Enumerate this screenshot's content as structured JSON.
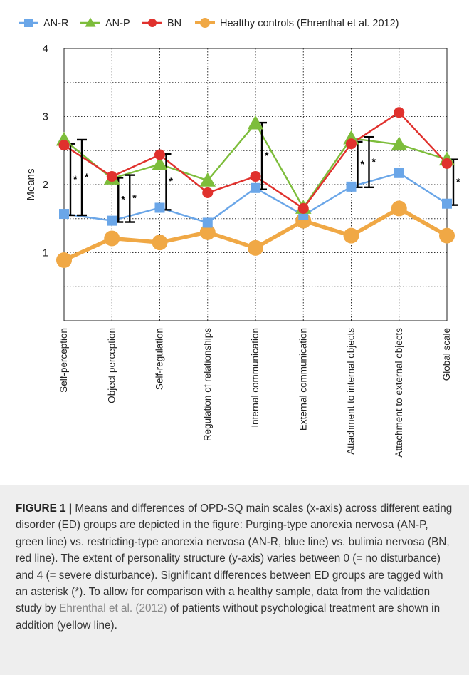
{
  "chart_data": {
    "type": "line",
    "ylabel": "Means",
    "xlabel": "",
    "ylim": [
      0,
      4
    ],
    "yticks": [
      1,
      2,
      3,
      4
    ],
    "grid": "dotted horizontal and vertical",
    "legend_position": "top",
    "categories": [
      "Self-perception",
      "Object perception",
      "Self-regulation",
      "Regulation of relationships",
      "Internal communication",
      "External communication",
      "Attachment to internal objects",
      "Attachment to external objects",
      "Global scale"
    ],
    "series": [
      {
        "name": "AN-R",
        "color": "#6aa6e8",
        "marker": "square",
        "values": [
          1.57,
          1.47,
          1.66,
          1.44,
          1.95,
          1.55,
          1.97,
          2.17,
          1.72
        ]
      },
      {
        "name": "AN-P",
        "color": "#7dbd3b",
        "marker": "triangle",
        "values": [
          2.66,
          2.09,
          2.3,
          2.06,
          2.9,
          1.66,
          2.68,
          2.59,
          2.37
        ]
      },
      {
        "name": "BN",
        "color": "#e0312d",
        "marker": "circle",
        "values": [
          2.58,
          2.12,
          2.44,
          1.88,
          2.12,
          1.65,
          2.6,
          3.06,
          2.31
        ]
      },
      {
        "name": "Healthy controls (Ehrenthal et al. 2012)",
        "color": "#f0a845",
        "marker": "circle",
        "values": [
          0.89,
          1.21,
          1.15,
          1.3,
          1.07,
          1.47,
          1.25,
          1.65,
          1.25
        ]
      }
    ],
    "significance_brackets": [
      {
        "category_index": 0,
        "offset": 0,
        "low": 1.55,
        "high": 2.6,
        "label": "*"
      },
      {
        "category_index": 0,
        "offset": 1,
        "low": 1.55,
        "high": 2.66,
        "label": "*"
      },
      {
        "category_index": 1,
        "offset": 0,
        "low": 1.45,
        "high": 2.1,
        "label": "*"
      },
      {
        "category_index": 1,
        "offset": 1,
        "low": 1.45,
        "high": 2.14,
        "label": "*"
      },
      {
        "category_index": 2,
        "offset": 0,
        "low": 1.63,
        "high": 2.45,
        "label": "*"
      },
      {
        "category_index": 4,
        "offset": 0,
        "low": 1.93,
        "high": 2.91,
        "label": "*"
      },
      {
        "category_index": 6,
        "offset": 0,
        "low": 1.96,
        "high": 2.63,
        "label": "*"
      },
      {
        "category_index": 6,
        "offset": 1,
        "low": 1.96,
        "high": 2.7,
        "label": "*"
      },
      {
        "category_index": 8,
        "offset": 0,
        "low": 1.7,
        "high": 2.37,
        "label": "*"
      }
    ]
  },
  "caption": {
    "label": "FIGURE 1 |",
    "text_part1": " Means and differences of OPD-SQ main scales (x-axis) across different eating disorder (ED) groups are depicted in the figure: Purging-type anorexia nervosa (AN-P, green line) vs. restricting-type anorexia nervosa (AN-R, blue line) vs. bulimia nervosa (BN, red line). The extent of personality structure (y-axis) varies between 0 (= no disturbance) and 4 (= severe disturbance). Significant differences between ED groups are tagged with an asterisk (*). To allow for comparison with a healthy sample, data from the validation study by ",
    "citation": "Ehrenthal et al. (2012)",
    "text_part2": " of patients without psychological treatment are shown in addition (yellow line)."
  }
}
